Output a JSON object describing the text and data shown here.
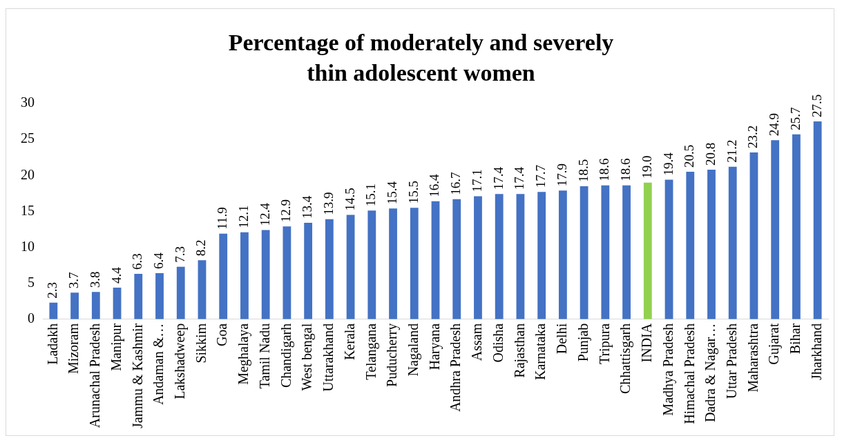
{
  "chart_data": {
    "type": "bar",
    "title": "Percentage of moderately and severely thin adolescent women",
    "categories": [
      "Ladakh",
      "Mizoram",
      "Arunachal Pradesh",
      "Manipur",
      "Jammu & Kashmir",
      "Andaman &…",
      "Lakshadweep",
      "Sikkim",
      "Goa",
      "Meghalaya",
      "Tamil Nadu",
      "Chandigarh",
      "West bengal",
      "Uttarakhand",
      "Kerala",
      "Telangana",
      "Puducherry",
      "Nagaland",
      "Haryana",
      "Andhra Pradesh",
      "Assam",
      "Odisha",
      "Rajasthan",
      "Karnataka",
      "Delhi",
      "Punjab",
      "Tripura",
      "Chhattisgarh",
      "INDIA",
      "Madhya Pradesh",
      "Himachal Pradesh",
      "Dadra & Nagar…",
      "Uttar Pradesh",
      "Maharashtra",
      "Gujarat",
      "Bihar",
      "Jharkhand"
    ],
    "values": [
      2.3,
      3.7,
      3.8,
      4.4,
      6.3,
      6.4,
      7.3,
      8.2,
      11.9,
      12.1,
      12.4,
      12.9,
      13.4,
      13.9,
      14.5,
      15.1,
      15.4,
      15.5,
      16.4,
      16.7,
      17.1,
      17.4,
      17.4,
      17.7,
      17.9,
      18.5,
      18.6,
      18.6,
      19.0,
      19.4,
      20.5,
      20.8,
      21.2,
      23.2,
      24.9,
      25.7,
      27.5
    ],
    "value_labels": [
      "2.3",
      "3.7",
      "3.8",
      "4.4",
      "6.3",
      "6.4",
      "7.3",
      "8.2",
      "11.9",
      "12.1",
      "12.4",
      "12.9",
      "13.4",
      "13.9",
      "14.5",
      "15.1",
      "15.4",
      "15.5",
      "16.4",
      "16.7",
      "17.1",
      "17.4",
      "17.4",
      "17.7",
      "17.9",
      "18.5",
      "18.6",
      "18.6",
      "19.0",
      "19.4",
      "20.5",
      "20.8",
      "21.2",
      "23.2",
      "24.9",
      "25.7",
      "27.5"
    ],
    "colors": [
      "#4472c4",
      "#4472c4",
      "#4472c4",
      "#4472c4",
      "#4472c4",
      "#4472c4",
      "#4472c4",
      "#4472c4",
      "#4472c4",
      "#4472c4",
      "#4472c4",
      "#4472c4",
      "#4472c4",
      "#4472c4",
      "#4472c4",
      "#4472c4",
      "#4472c4",
      "#4472c4",
      "#4472c4",
      "#4472c4",
      "#4472c4",
      "#4472c4",
      "#4472c4",
      "#4472c4",
      "#4472c4",
      "#4472c4",
      "#4472c4",
      "#4472c4",
      "#92d050",
      "#4472c4",
      "#4472c4",
      "#4472c4",
      "#4472c4",
      "#4472c4",
      "#4472c4",
      "#4472c4",
      "#4472c4"
    ],
    "ylim": [
      0,
      30
    ],
    "yticks": [
      0,
      5,
      10,
      15,
      20,
      25,
      30
    ],
    "grid": false,
    "legend": false
  }
}
